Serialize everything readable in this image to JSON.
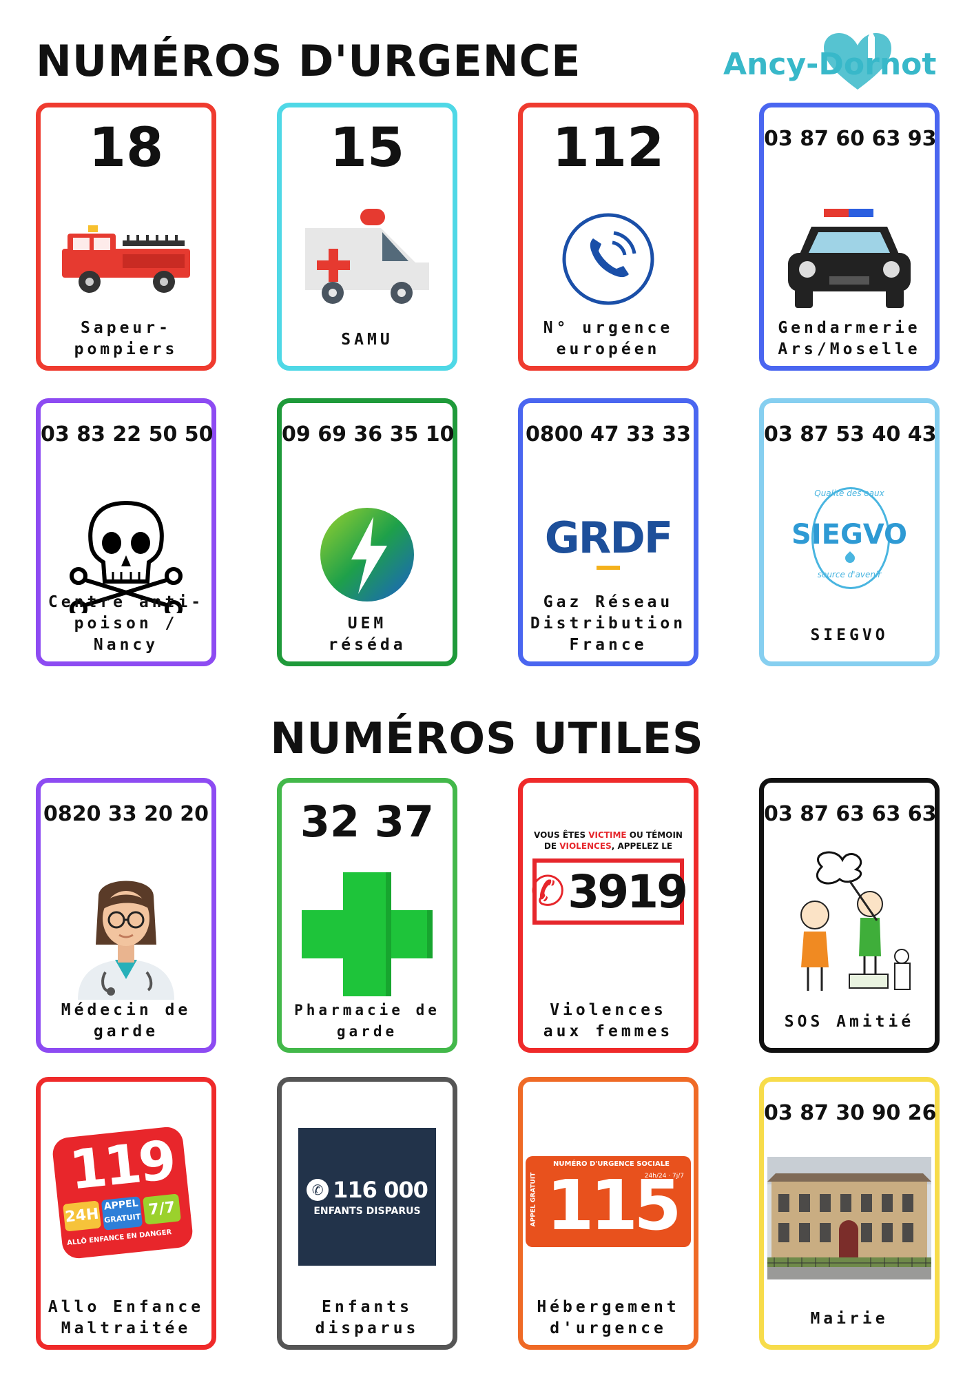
{
  "header": {
    "title_urgence": "NUMÉROS D'URGENCE",
    "title_utiles": "NUMÉROS UTILES",
    "logo_text": "Ancy-Dornot"
  },
  "colors": {
    "red": "#ef3b2f",
    "cyan": "#4fd8e6",
    "blue": "#4a66f0",
    "purple": "#8d4bf2",
    "green_dark": "#1f9a3a",
    "sky": "#86cff0",
    "green": "#43b84a",
    "black": "#111111",
    "gray": "#555555",
    "orange": "#ef6a26",
    "yellow": "#f7dc4b",
    "logo": "#38b8c9"
  },
  "cards": [
    {
      "number": "18",
      "label_1": "Sapeur-",
      "label_2": "pompiers",
      "icon": "fire-truck-icon"
    },
    {
      "number": "15",
      "label_1": "SAMU",
      "label_2": "",
      "icon": "ambulance-icon"
    },
    {
      "number": "112",
      "label_1": "N° urgence",
      "label_2": "européen",
      "icon": "phone-icon"
    },
    {
      "number": "03 87 60 63 93",
      "label_1": "Gendarmerie",
      "label_2": "Ars/Moselle",
      "icon": "police-car-icon"
    },
    {
      "number": "03 83 22 50 50",
      "label_1": "Centre anti-",
      "label_2": "poison / Nancy",
      "icon": "skull-icon"
    },
    {
      "number": "09 69 36 35 10",
      "label_1": "UEM",
      "label_2": "réséda",
      "icon": "lightning-logo-icon"
    },
    {
      "number": "0800 47 33 33",
      "label_1": "Gaz Réseau",
      "label_2": "Distribution",
      "label_3": "France",
      "icon": "grdf-logo",
      "logo_text": "GRDF"
    },
    {
      "number": "03 87 53 40 43",
      "label_1": "SIEGVO",
      "label_2": "",
      "icon": "siegvo-logo",
      "logo_text": "SIEGVO",
      "logo_top": "Qualité des eaux",
      "logo_bottom": "source d'avenir"
    },
    {
      "number": "0820 33 20 20",
      "label_1": "Médecin de",
      "label_2": "garde",
      "icon": "doctor-icon"
    },
    {
      "number": "32 37",
      "label_1": "Pharmacie de",
      "label_2": "garde",
      "icon": "pharmacy-cross-icon"
    },
    {
      "number": "",
      "label_1": "Violences",
      "label_2": "aux femmes",
      "icon": "3919-logo",
      "logo_l1a": "VOUS ÊTES ",
      "logo_l1b": "VICTIME",
      "logo_l1c": " OU TÉMOIN",
      "logo_l2a": "DE ",
      "logo_l2b": "VIOLENCES",
      "logo_l2c": ", APPELEZ LE",
      "logo_num": "3919"
    },
    {
      "number": "03 87 63 63 63",
      "label_1": "SOS Amitié",
      "label_2": "",
      "icon": "sos-amitie-illustration"
    },
    {
      "number": "",
      "label_1": "Allo Enfance",
      "label_2": "Maltraitée",
      "icon": "119-logo",
      "logo_num": "119",
      "logo_24": "24H",
      "logo_appel": "APPEL",
      "logo_gratuit": "GRATUIT",
      "logo_77": "7/7",
      "logo_bottom": "ALLÔ ENFANCE EN DANGER"
    },
    {
      "number": "",
      "label_1": "Enfants",
      "label_2": "disparus",
      "icon": "116000-logo",
      "logo_num": "116 000",
      "logo_sub": "ENFANTS DISPARUS"
    },
    {
      "number": "",
      "label_1": "Hébergement",
      "label_2": "d'urgence",
      "icon": "115-logo",
      "logo_num": "115",
      "logo_top": "NUMÉRO D'URGENCE SOCIALE",
      "logo_side": "APPEL GRATUIT",
      "logo_hours": "24h/24 · 7j/7"
    },
    {
      "number": "03 87 30 90 26",
      "label_1": "Mairie",
      "label_2": "",
      "icon": "town-hall-photo"
    }
  ]
}
